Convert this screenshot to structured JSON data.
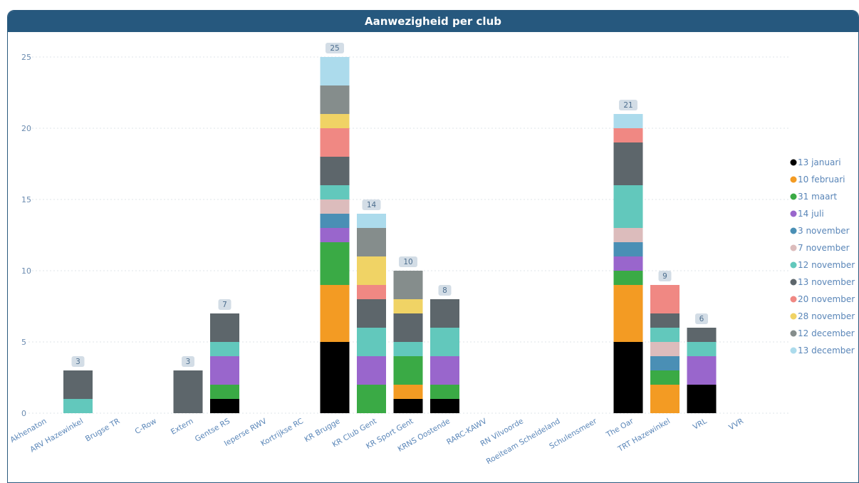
{
  "title": "Aanwezigheid per club",
  "chart_data": {
    "type": "bar",
    "stacked": true,
    "title": "Aanwezigheid per club",
    "xlabel": "",
    "ylabel": "",
    "ylim": [
      0,
      25
    ],
    "yticks": [
      0,
      5,
      10,
      15,
      20,
      25
    ],
    "grid": true,
    "legend": "right",
    "categories": [
      "Akhenaton",
      "ARV Hazewinkel",
      "Brugse TR",
      "C-Row",
      "Extern",
      "Gentse RS",
      "Ieperse RWV",
      "Kortrijkse RC",
      "KR Brugge",
      "KR Club Gent",
      "KR Sport Gent",
      "KRNS Oostende",
      "RARC-KAWV",
      "RN Vilvoorde",
      "Roeiteam Scheldeland",
      "Schulensmeer",
      "The Oar",
      "TRT Hazewinkel",
      "VRL",
      "VVR"
    ],
    "totals": [
      0,
      3,
      0,
      0,
      3,
      7,
      0,
      0,
      25,
      14,
      10,
      8,
      0,
      0,
      0,
      0,
      21,
      9,
      6,
      0
    ],
    "series": [
      {
        "name": "13 januari",
        "color": "#000000",
        "values": [
          0,
          0,
          0,
          0,
          0,
          1,
          0,
          0,
          5,
          0,
          1,
          1,
          0,
          0,
          0,
          0,
          5,
          0,
          2,
          0
        ]
      },
      {
        "name": "10 februari",
        "color": "#f39b23",
        "values": [
          0,
          0,
          0,
          0,
          0,
          0,
          0,
          0,
          4,
          0,
          1,
          0,
          0,
          0,
          0,
          0,
          4,
          2,
          0,
          0
        ]
      },
      {
        "name": "31 maart",
        "color": "#3aaa45",
        "values": [
          0,
          0,
          0,
          0,
          0,
          1,
          0,
          0,
          3,
          2,
          2,
          1,
          0,
          0,
          0,
          0,
          1,
          1,
          0,
          0
        ]
      },
      {
        "name": "14 juli",
        "color": "#9966cc",
        "values": [
          0,
          0,
          0,
          0,
          0,
          2,
          0,
          0,
          1,
          2,
          0,
          2,
          0,
          0,
          0,
          0,
          1,
          0,
          2,
          0
        ]
      },
      {
        "name": "3 november",
        "color": "#4a8fb5",
        "values": [
          0,
          0,
          0,
          0,
          0,
          0,
          0,
          0,
          1,
          0,
          0,
          0,
          0,
          0,
          0,
          0,
          1,
          1,
          0,
          0
        ]
      },
      {
        "name": "7 november",
        "color": "#dcbcbc",
        "values": [
          0,
          0,
          0,
          0,
          0,
          0,
          0,
          0,
          1,
          0,
          0,
          0,
          0,
          0,
          0,
          0,
          1,
          1,
          0,
          0
        ]
      },
      {
        "name": "12 november",
        "color": "#62c8bc",
        "values": [
          0,
          1,
          0,
          0,
          0,
          1,
          0,
          0,
          1,
          2,
          1,
          2,
          0,
          0,
          0,
          0,
          3,
          1,
          1,
          0
        ]
      },
      {
        "name": "13 november",
        "color": "#5d666b",
        "values": [
          0,
          2,
          0,
          0,
          3,
          2,
          0,
          0,
          2,
          2,
          2,
          2,
          0,
          0,
          0,
          0,
          3,
          1,
          1,
          0
        ]
      },
      {
        "name": "20 november",
        "color": "#f08883",
        "values": [
          0,
          0,
          0,
          0,
          0,
          0,
          0,
          0,
          2,
          1,
          0,
          0,
          0,
          0,
          0,
          0,
          1,
          2,
          0,
          0
        ]
      },
      {
        "name": "28 november",
        "color": "#f0d365",
        "values": [
          0,
          0,
          0,
          0,
          0,
          0,
          0,
          0,
          1,
          2,
          1,
          0,
          0,
          0,
          0,
          0,
          0,
          0,
          0,
          0
        ]
      },
      {
        "name": "12 december",
        "color": "#858d8c",
        "values": [
          0,
          0,
          0,
          0,
          0,
          0,
          0,
          0,
          2,
          2,
          2,
          0,
          0,
          0,
          0,
          0,
          0,
          0,
          0,
          0
        ]
      },
      {
        "name": "13 december",
        "color": "#acdbec",
        "values": [
          0,
          0,
          0,
          0,
          0,
          0,
          0,
          0,
          2,
          1,
          0,
          0,
          0,
          0,
          0,
          0,
          1,
          0,
          0,
          0
        ]
      }
    ]
  },
  "colors": {
    "header_bg": "#26587e",
    "total_badge_bg": "#d3dde6",
    "grid": "#dfe4ea"
  }
}
